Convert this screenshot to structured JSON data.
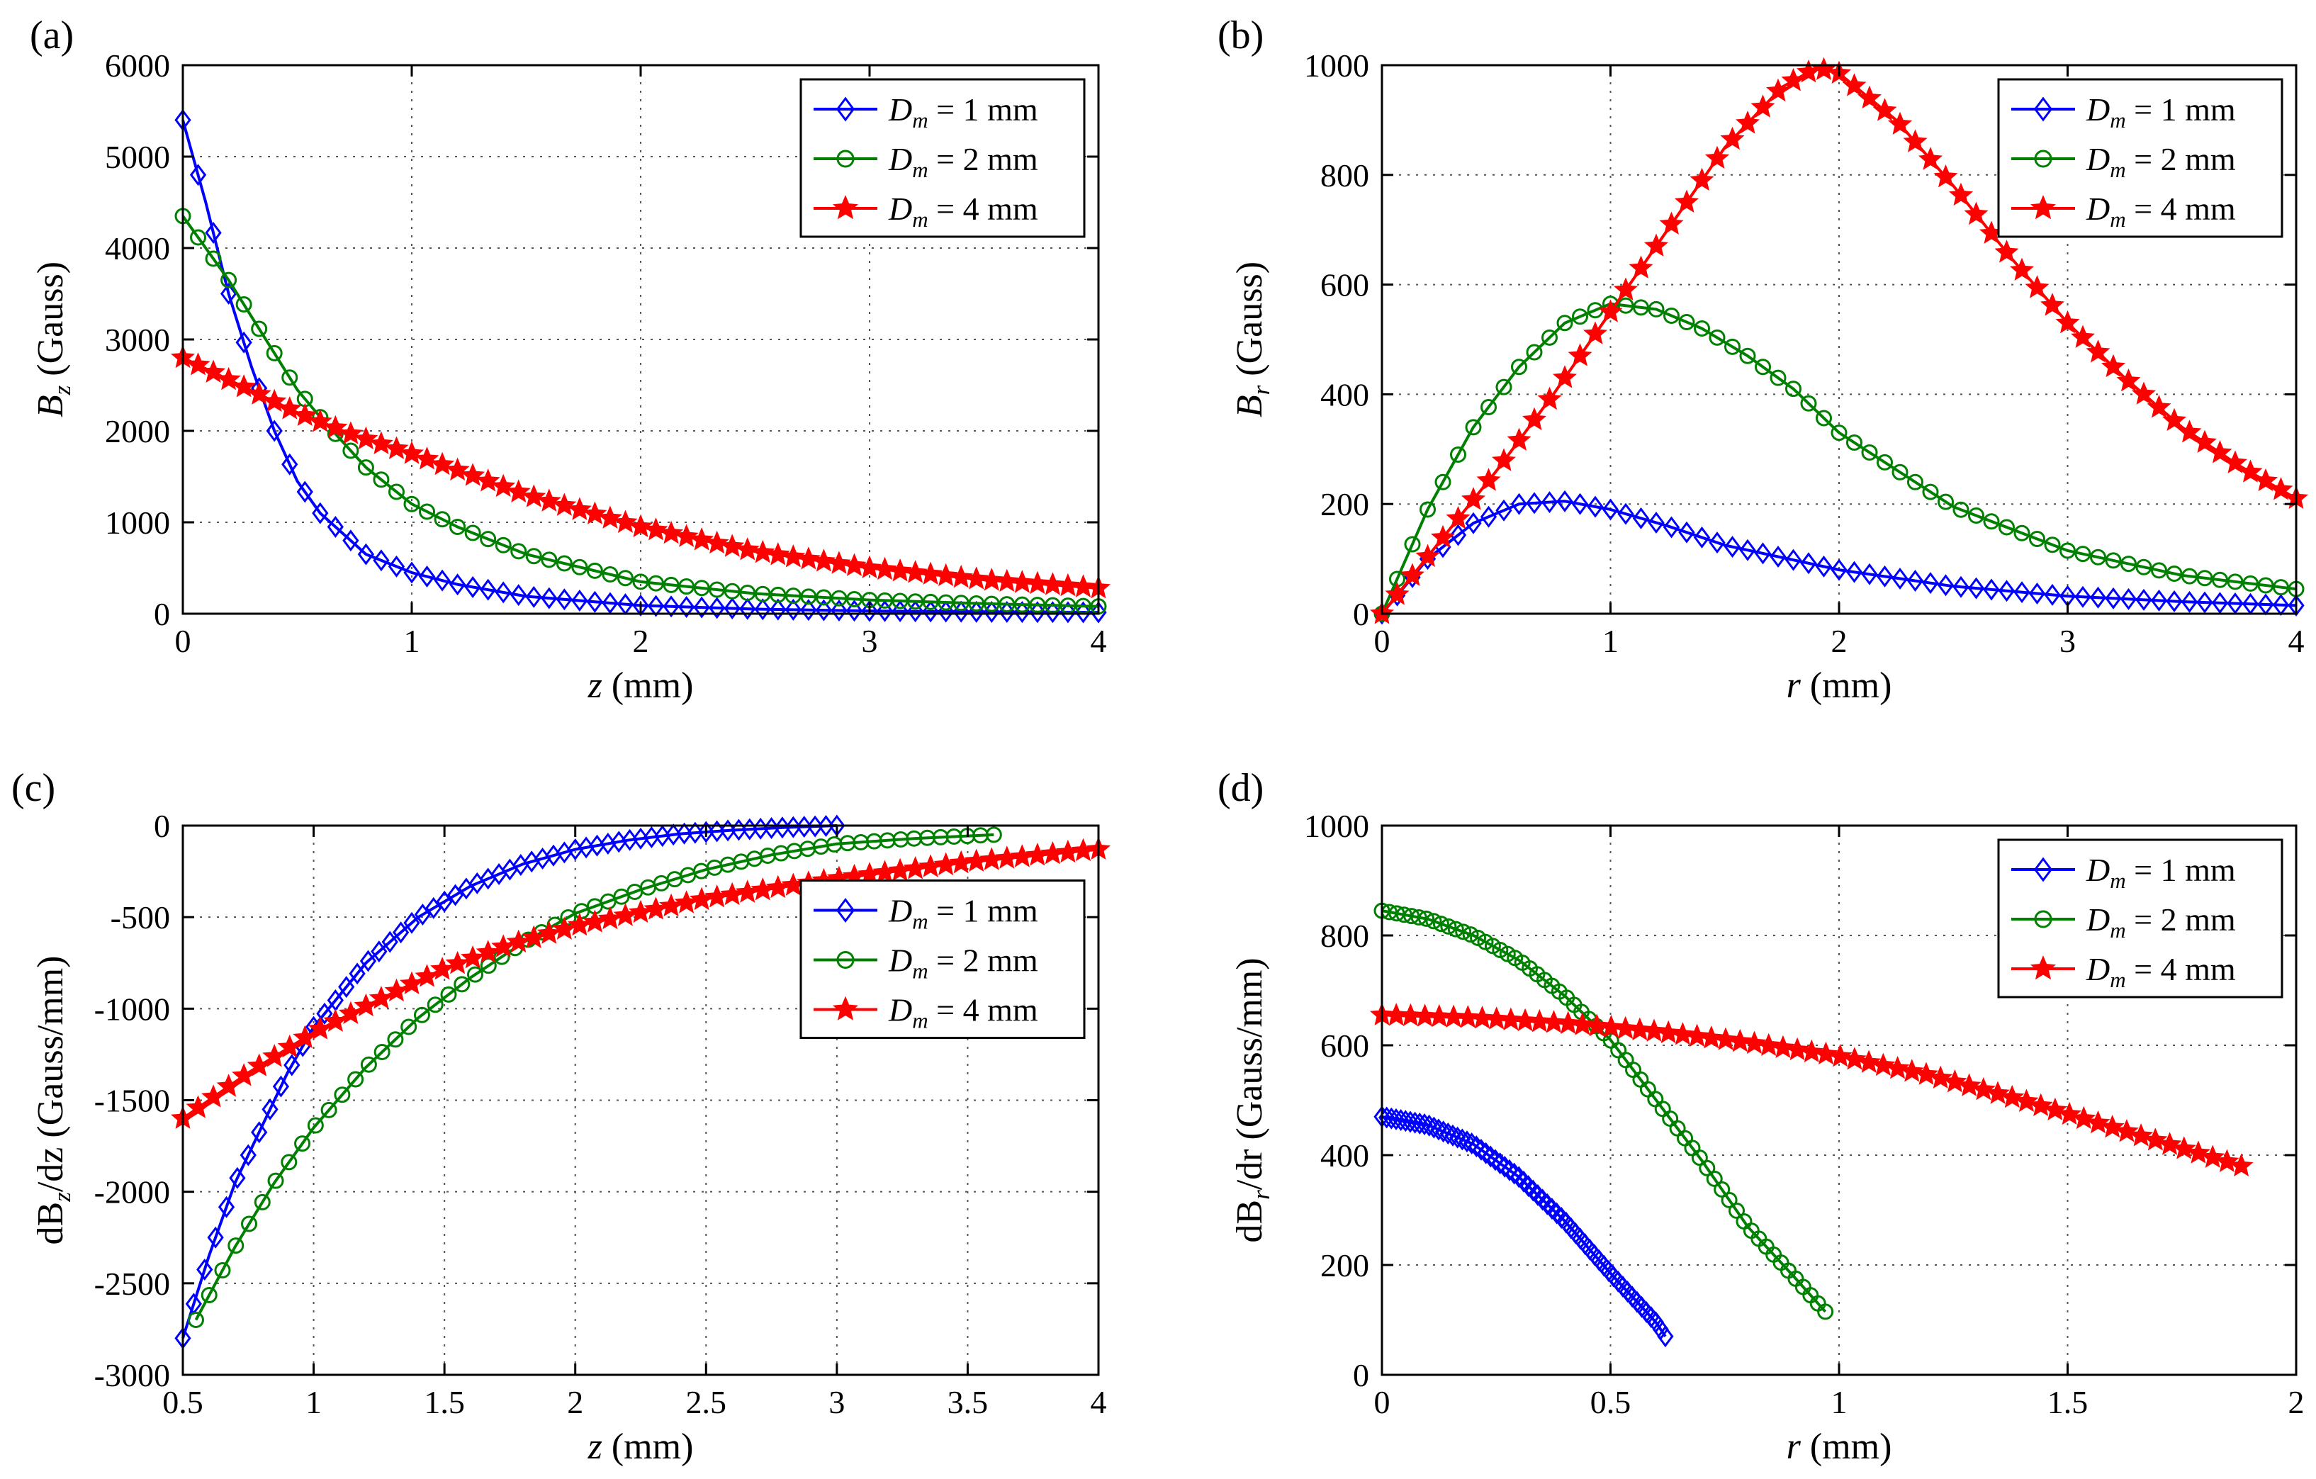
{
  "chart_data": [
    {
      "type": "line",
      "panel_label": "(a)",
      "xlabel": "z (mm)",
      "ylabel": "B_z (Gauss)",
      "xlim": [
        0,
        4
      ],
      "ylim": [
        0,
        6000
      ],
      "xticks": [
        0,
        1,
        2,
        3,
        4
      ],
      "yticks": [
        0,
        1000,
        2000,
        3000,
        4000,
        5000,
        6000
      ],
      "grid": true,
      "legend_position": "top-right",
      "series": [
        {
          "name": "D_m = 1 mm",
          "color": "#0000ff",
          "marker": "diamond",
          "x": [
            0,
            0.05,
            0.1,
            0.15,
            0.2,
            0.3,
            0.4,
            0.5,
            0.6,
            0.8,
            1.0,
            1.2,
            1.5,
            2.0,
            2.5,
            3.0,
            3.5,
            4.0
          ],
          "y": [
            5400,
            4950,
            4500,
            4000,
            3500,
            2700,
            2000,
            1450,
            1100,
            650,
            450,
            320,
            190,
            90,
            50,
            30,
            20,
            15
          ]
        },
        {
          "name": "D_m = 2 mm",
          "color": "#008000",
          "marker": "circle",
          "x": [
            0,
            0.1,
            0.2,
            0.3,
            0.4,
            0.5,
            0.6,
            0.8,
            1.0,
            1.2,
            1.5,
            2.0,
            2.5,
            3.0,
            3.5,
            4.0
          ],
          "y": [
            4350,
            4000,
            3650,
            3250,
            2850,
            2450,
            2150,
            1600,
            1200,
            950,
            650,
            350,
            220,
            150,
            110,
            80
          ]
        },
        {
          "name": "D_m = 4 mm",
          "color": "#ff0000",
          "marker": "star",
          "x": [
            0,
            0.25,
            0.5,
            0.75,
            1.0,
            1.5,
            2.0,
            2.5,
            3.0,
            3.5,
            4.0
          ],
          "y": [
            2800,
            2500,
            2200,
            1950,
            1750,
            1300,
            950,
            680,
            500,
            370,
            280
          ]
        }
      ]
    },
    {
      "type": "line",
      "panel_label": "(b)",
      "xlabel": "r (mm)",
      "ylabel": "B_r (Gauss)",
      "xlim": [
        0,
        4
      ],
      "ylim": [
        0,
        1000
      ],
      "xticks": [
        0,
        1,
        2,
        3,
        4
      ],
      "yticks": [
        0,
        200,
        400,
        600,
        800,
        1000
      ],
      "grid": true,
      "legend_position": "top-right",
      "series": [
        {
          "name": "D_m = 1 mm",
          "color": "#0000ff",
          "marker": "diamond",
          "x": [
            0,
            0.2,
            0.4,
            0.6,
            0.8,
            1.0,
            1.25,
            1.5,
            2.0,
            2.5,
            3.0,
            3.5,
            4.0
          ],
          "y": [
            0,
            100,
            165,
            200,
            205,
            190,
            160,
            125,
            80,
            50,
            32,
            22,
            15
          ]
        },
        {
          "name": "D_m = 2 mm",
          "color": "#008000",
          "marker": "circle",
          "x": [
            0,
            0.2,
            0.4,
            0.6,
            0.8,
            1.0,
            1.2,
            1.4,
            1.6,
            1.8,
            2.0,
            2.5,
            3.0,
            3.5,
            4.0
          ],
          "y": [
            0,
            190,
            340,
            450,
            530,
            565,
            555,
            520,
            470,
            410,
            330,
            195,
            115,
            70,
            45
          ]
        },
        {
          "name": "D_m = 4 mm",
          "color": "#ff0000",
          "marker": "star",
          "x": [
            0,
            0.25,
            0.5,
            0.75,
            1.0,
            1.25,
            1.5,
            1.75,
            1.9,
            2.0,
            2.25,
            2.5,
            2.75,
            3.0,
            3.25,
            3.5,
            3.75,
            4.0
          ],
          "y": [
            0,
            130,
            260,
            400,
            550,
            700,
            850,
            960,
            995,
            985,
            900,
            780,
            650,
            530,
            430,
            340,
            270,
            210
          ]
        }
      ]
    },
    {
      "type": "line",
      "panel_label": "(c)",
      "xlabel": "z (mm)",
      "ylabel": "dB_z/dz (Gauss/mm)",
      "xlim": [
        0.5,
        4
      ],
      "ylim": [
        -3000,
        0
      ],
      "xticks": [
        0.5,
        1,
        1.5,
        2,
        2.5,
        3,
        3.5,
        4
      ],
      "yticks": [
        0,
        -500,
        -1000,
        -1500,
        -2000,
        -2500,
        -3000
      ],
      "grid": true,
      "legend_position": "middle-right",
      "series": [
        {
          "name": "D_m = 1 mm",
          "color": "#0000ff",
          "marker": "diamond",
          "x": [
            0.5,
            0.6,
            0.7,
            0.8,
            0.9,
            1.0,
            1.2,
            1.4,
            1.6,
            1.8,
            2.0,
            2.2,
            2.4,
            2.6,
            2.8,
            3.0
          ],
          "y": [
            -2800,
            -2350,
            -1950,
            -1650,
            -1350,
            -1100,
            -750,
            -500,
            -330,
            -210,
            -130,
            -80,
            -45,
            -25,
            -10,
            0
          ]
        },
        {
          "name": "D_m = 2 mm",
          "color": "#008000",
          "marker": "circle",
          "x": [
            0.55,
            0.7,
            0.85,
            1.0,
            1.2,
            1.4,
            1.6,
            1.8,
            2.0,
            2.25,
            2.5,
            2.75,
            3.0,
            3.3,
            3.6
          ],
          "y": [
            -2700,
            -2300,
            -1950,
            -1650,
            -1320,
            -1050,
            -830,
            -640,
            -480,
            -350,
            -240,
            -160,
            -100,
            -70,
            -50
          ]
        },
        {
          "name": "D_m = 4 mm",
          "color": "#ff0000",
          "marker": "star",
          "x": [
            0.5,
            0.75,
            1.0,
            1.25,
            1.5,
            1.75,
            2.0,
            2.5,
            3.0,
            3.5,
            4.0
          ],
          "y": [
            -1600,
            -1350,
            -1130,
            -950,
            -780,
            -650,
            -550,
            -400,
            -290,
            -200,
            -130
          ]
        }
      ]
    },
    {
      "type": "line",
      "panel_label": "(d)",
      "xlabel": "r (mm)",
      "ylabel": "dB_r/dr (Gauss/mm)",
      "xlim": [
        0,
        2
      ],
      "ylim": [
        0,
        1000
      ],
      "xticks": [
        0,
        0.5,
        1,
        1.5,
        2
      ],
      "yticks": [
        0,
        200,
        400,
        600,
        800,
        1000
      ],
      "grid": true,
      "legend_position": "top-right",
      "series": [
        {
          "name": "D_m = 1 mm",
          "color": "#0000ff",
          "marker": "diamond",
          "x": [
            0,
            0.1,
            0.2,
            0.3,
            0.4,
            0.5,
            0.55,
            0.6,
            0.62
          ],
          "y": [
            470,
            455,
            420,
            360,
            280,
            185,
            140,
            95,
            70
          ]
        },
        {
          "name": "D_m = 2 mm",
          "color": "#008000",
          "marker": "circle",
          "x": [
            0,
            0.1,
            0.2,
            0.3,
            0.4,
            0.5,
            0.6,
            0.7,
            0.8,
            0.9,
            0.97
          ],
          "y": [
            845,
            830,
            800,
            755,
            690,
            610,
            500,
            390,
            270,
            180,
            115
          ]
        },
        {
          "name": "D_m = 4 mm",
          "color": "#ff0000",
          "marker": "star",
          "x": [
            0,
            0.2,
            0.4,
            0.6,
            0.8,
            1.0,
            1.2,
            1.4,
            1.6,
            1.8,
            1.88
          ],
          "y": [
            655,
            650,
            640,
            625,
            605,
            580,
            545,
            500,
            450,
            400,
            380
          ]
        }
      ]
    }
  ]
}
